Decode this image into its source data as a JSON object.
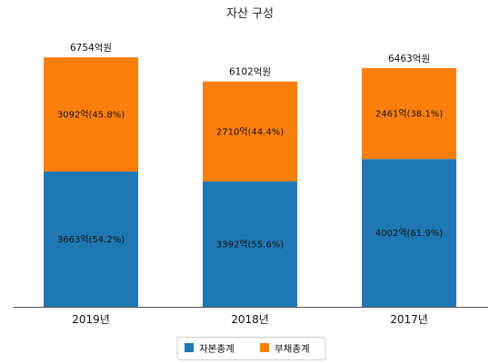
{
  "chart_data": {
    "type": "bar",
    "stacked": true,
    "title": "자산 구성",
    "categories": [
      "2019년",
      "2018년",
      "2017년"
    ],
    "ylim": [
      0,
      7300
    ],
    "grid": false,
    "legend": "bottom",
    "series": [
      {
        "name": "자본총계",
        "color": "#1f77b4",
        "values": [
          3663,
          3392,
          4002
        ],
        "labels": [
          "3663억(54.2%)",
          "3392억(55.6%)",
          "4002억(61.9%)"
        ]
      },
      {
        "name": "부채총계",
        "color": "#ff7f0e",
        "values": [
          3092,
          2710,
          2461
        ],
        "labels": [
          "3092억(45.8%)",
          "2710억(44.4%)",
          "2461억(38.1%)"
        ]
      }
    ],
    "total_labels": [
      "6754억원",
      "6102억원",
      "6463억원"
    ]
  }
}
